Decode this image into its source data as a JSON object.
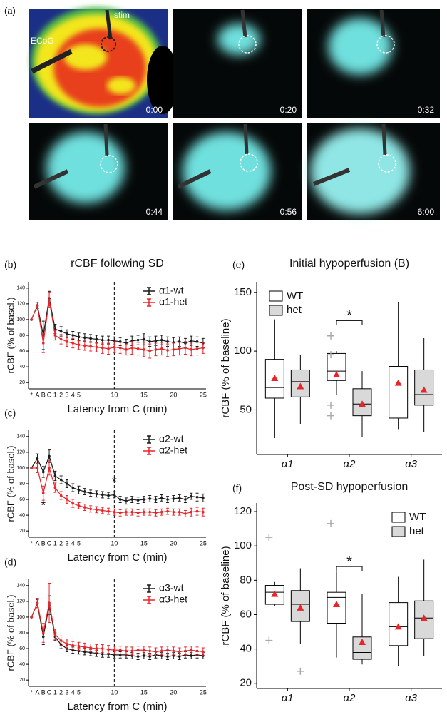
{
  "panel_a": {
    "label": "(a)",
    "annotations": [
      "stim",
      "ECoG"
    ],
    "timestamps": [
      "0:00",
      "0:20",
      "0:32",
      "0:44",
      "0:56",
      "6:00"
    ]
  },
  "chart_data": [
    {
      "type": "line",
      "panel_label": "(b)",
      "title": "rCBF following SD",
      "y_label": "rCBF (% of basel.)",
      "x_label": "Latency from C (min)",
      "categories": [
        "*",
        "A",
        "B",
        "C",
        "1",
        "2",
        "3",
        "4",
        "5",
        null,
        null,
        null,
        null,
        null,
        "10",
        null,
        null,
        null,
        null,
        "15",
        null,
        null,
        null,
        null,
        "20",
        null,
        null,
        null,
        null,
        "25"
      ],
      "ylim": [
        12,
        148
      ],
      "yticks": [
        20,
        40,
        60,
        80,
        100,
        120,
        140
      ],
      "vline_category": 14,
      "legend": "top-right",
      "series": [
        {
          "name": "α1-wt",
          "color": "#1a1a1a",
          "values": [
            100,
            118,
            80,
            127,
            88,
            85,
            82,
            80,
            78,
            77,
            76,
            75,
            74,
            74,
            73,
            72,
            70,
            73,
            74,
            75,
            72,
            73,
            74,
            72,
            71,
            72,
            70,
            73,
            72,
            70
          ],
          "errors": [
            0,
            4,
            18,
            9,
            6,
            6,
            5,
            5,
            5,
            5,
            5,
            5,
            5,
            5,
            5,
            5,
            5,
            6,
            6,
            7,
            6,
            6,
            6,
            6,
            6,
            6,
            6,
            6,
            6,
            6
          ]
        },
        {
          "name": "α1-het",
          "color": "#e8262a",
          "values": [
            100,
            117,
            70,
            125,
            80,
            75,
            72,
            70,
            68,
            67,
            66,
            65,
            64,
            63,
            65,
            64,
            62,
            64,
            63,
            62,
            60,
            62,
            63,
            61,
            62,
            63,
            64,
            62,
            63,
            64
          ],
          "errors": [
            0,
            5,
            12,
            10,
            6,
            6,
            6,
            6,
            6,
            6,
            6,
            6,
            7,
            7,
            7,
            7,
            7,
            8,
            8,
            9,
            9,
            8,
            8,
            8,
            8,
            8,
            8,
            8,
            8,
            7
          ]
        }
      ]
    },
    {
      "type": "line",
      "panel_label": "(c)",
      "y_label": "rCBF (% of basel.)",
      "x_label": "Latency from C (min)",
      "categories": [
        "*",
        "A",
        "B",
        "C",
        "1",
        "2",
        "3",
        "4",
        "5",
        null,
        null,
        null,
        null,
        null,
        "10",
        null,
        null,
        null,
        null,
        "15",
        null,
        null,
        null,
        null,
        "20",
        null,
        null,
        null,
        null,
        "25"
      ],
      "ylim": [
        12,
        148
      ],
      "yticks": [
        20,
        40,
        60,
        80,
        100,
        120,
        140
      ],
      "vline_category": 14,
      "legend": "top-right",
      "series": [
        {
          "name": "α2-wt",
          "color": "#1a1a1a",
          "values": [
            100,
            112,
            95,
            115,
            90,
            85,
            80,
            75,
            72,
            70,
            68,
            67,
            66,
            65,
            66,
            60,
            58,
            60,
            59,
            60,
            61,
            60,
            62,
            60,
            61,
            62,
            60,
            64,
            63,
            62
          ],
          "errors": [
            0,
            6,
            7,
            8,
            6,
            5,
            5,
            5,
            5,
            4,
            4,
            4,
            4,
            4,
            4,
            4,
            4,
            4,
            4,
            4,
            4,
            4,
            4,
            4,
            4,
            4,
            4,
            4,
            5,
            5
          ]
        },
        {
          "name": "α2-het",
          "color": "#e8262a",
          "values": [
            100,
            100,
            68,
            100,
            75,
            65,
            60,
            55,
            52,
            50,
            48,
            47,
            46,
            45,
            44,
            43,
            44,
            44,
            43,
            44,
            44,
            43,
            44,
            45,
            44,
            44,
            42,
            44,
            45,
            44
          ],
          "errors": [
            0,
            6,
            9,
            9,
            6,
            5,
            5,
            5,
            4,
            4,
            4,
            4,
            4,
            4,
            4,
            4,
            4,
            4,
            4,
            4,
            4,
            4,
            4,
            4,
            4,
            4,
            4,
            5,
            5,
            5
          ]
        }
      ],
      "annotations": [
        {
          "text": "*",
          "category": 14,
          "value": 81
        },
        {
          "text": "*",
          "category": 2,
          "value": 51
        }
      ]
    },
    {
      "type": "line",
      "panel_label": "(d)",
      "y_label": "rCBF (% of basel.)",
      "x_label": "Latency from C (min)",
      "categories": [
        "*",
        "A",
        "B",
        "C",
        "1",
        "2",
        "3",
        "4",
        "5",
        null,
        null,
        null,
        null,
        null,
        "10",
        null,
        null,
        null,
        null,
        "15",
        null,
        null,
        null,
        null,
        "20",
        null,
        null,
        null,
        null,
        "25"
      ],
      "ylim": [
        12,
        148
      ],
      "yticks": [
        20,
        40,
        60,
        80,
        100,
        120,
        140
      ],
      "vline_category": 14,
      "legend": "top-right",
      "series": [
        {
          "name": "α3-wt",
          "color": "#1a1a1a",
          "values": [
            100,
            117,
            75,
            115,
            75,
            65,
            60,
            58,
            57,
            56,
            55,
            54,
            53,
            53,
            52,
            52,
            52,
            51,
            50,
            51,
            50,
            52,
            51,
            50,
            51,
            50,
            52,
            51,
            52,
            51
          ],
          "errors": [
            0,
            5,
            10,
            12,
            5,
            5,
            4,
            4,
            4,
            4,
            4,
            4,
            4,
            4,
            4,
            4,
            4,
            4,
            4,
            4,
            4,
            4,
            4,
            4,
            4,
            4,
            4,
            4,
            4,
            4
          ]
        },
        {
          "name": "α3-het",
          "color": "#e8262a",
          "values": [
            100,
            118,
            80,
            118,
            78,
            70,
            66,
            64,
            63,
            62,
            61,
            60,
            60,
            59,
            58,
            58,
            57,
            57,
            58,
            58,
            57,
            56,
            57,
            58,
            57,
            56,
            57,
            58,
            57,
            56
          ],
          "errors": [
            0,
            6,
            12,
            25,
            7,
            6,
            5,
            5,
            5,
            5,
            5,
            5,
            5,
            5,
            5,
            5,
            5,
            5,
            5,
            5,
            5,
            5,
            5,
            5,
            5,
            5,
            5,
            5,
            5,
            5
          ]
        }
      ]
    },
    {
      "type": "box",
      "panel_label": "(e)",
      "title": "Initial hypoperfusion (B)",
      "y_label": "rCBF (% of baseline)",
      "categories": [
        "α1",
        "α2",
        "α3"
      ],
      "ylim": [
        12,
        159
      ],
      "yticks": [
        50,
        100,
        150
      ],
      "legend": "top-left",
      "mean_color": "#e8262a",
      "outlier_color": "#aaaaaa",
      "series": [
        {
          "name": "WT",
          "color": "#ffffff",
          "boxes": [
            {
              "min": 26,
              "q1": 60,
              "median": 69,
              "q3": 93,
              "max": 127,
              "mean": 77,
              "outliers": []
            },
            {
              "min": 63,
              "q1": 75,
              "median": 83,
              "q3": 98,
              "max": 100,
              "mean": 80,
              "outliers": [
                113,
                97,
                54,
                45
              ]
            },
            {
              "min": 33,
              "q1": 43,
              "median": 84,
              "q3": 87,
              "max": 142,
              "mean": 73,
              "outliers": []
            }
          ]
        },
        {
          "name": "het",
          "color": "#d9d9d9",
          "boxes": [
            {
              "min": 38,
              "q1": 61,
              "median": 74,
              "q3": 84,
              "max": 97,
              "mean": 70,
              "outliers": []
            },
            {
              "min": 27,
              "q1": 45,
              "median": 55,
              "q3": 68,
              "max": 83,
              "mean": 55,
              "outliers": []
            },
            {
              "min": 31,
              "q1": 54,
              "median": 63,
              "q3": 84,
              "max": 111,
              "mean": 67,
              "outliers": []
            }
          ]
        }
      ],
      "annotations": [
        {
          "text": "*",
          "category": 1,
          "value": 126
        }
      ]
    },
    {
      "type": "box",
      "panel_label": "(f)",
      "title": "Post-SD hypoperfusion",
      "y_label": "rCBF (% of baseline)",
      "categories": [
        "α1",
        "α2",
        "α3"
      ],
      "ylim": [
        17,
        125
      ],
      "yticks": [
        20,
        40,
        60,
        80,
        100,
        120
      ],
      "legend": "top-right",
      "mean_color": "#e8262a",
      "outlier_color": "#aaaaaa",
      "series": [
        {
          "name": "WT",
          "color": "#ffffff",
          "boxes": [
            {
              "min": 65,
              "q1": 66,
              "median": 73,
              "q3": 77,
              "max": 79,
              "mean": 72,
              "outliers": [
                105,
                45
              ]
            },
            {
              "min": 35,
              "q1": 55,
              "median": 70,
              "q3": 73,
              "max": 85,
              "mean": 66,
              "outliers": [
                113
              ]
            },
            {
              "min": 30,
              "q1": 42,
              "median": 53,
              "q3": 67,
              "max": 82,
              "mean": 53,
              "outliers": []
            }
          ]
        },
        {
          "name": "het",
          "color": "#d9d9d9",
          "boxes": [
            {
              "min": 43,
              "q1": 56,
              "median": 66,
              "q3": 74,
              "max": 87,
              "mean": 64,
              "outliers": [
                27
              ]
            },
            {
              "min": 31,
              "q1": 34,
              "median": 38,
              "q3": 47,
              "max": 72,
              "mean": 44,
              "outliers": []
            },
            {
              "min": 36,
              "q1": 46,
              "median": 58,
              "q3": 68,
              "max": 92,
              "mean": 58,
              "outliers": []
            }
          ]
        }
      ],
      "annotations": [
        {
          "text": "*",
          "category": 1,
          "value": 88
        }
      ]
    }
  ]
}
